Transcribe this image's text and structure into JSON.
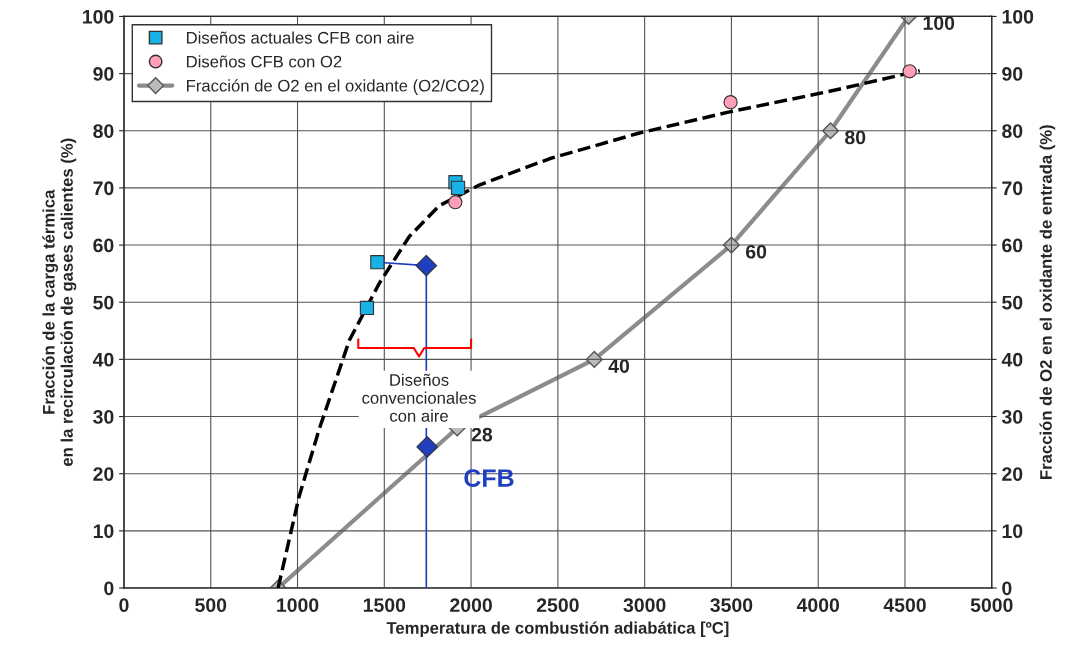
{
  "chart_data": {
    "type": "scatter",
    "xlabel": "Temperatura de combustión adiabática [ºC]",
    "ylabel": "Fracción de la carga térmica\nen la recirculación de gases calientes (%)",
    "y2label": "Fracción de O2 en el oxidante de entrada (%)",
    "xlim": [
      0,
      5000
    ],
    "xticks": [
      0,
      500,
      1000,
      1500,
      2000,
      2500,
      3000,
      3500,
      4000,
      4500,
      5000
    ],
    "ylim": [
      0,
      100
    ],
    "yticks": [
      0,
      10,
      20,
      30,
      40,
      50,
      60,
      70,
      80,
      90,
      100
    ],
    "y2lim": [
      0,
      100
    ],
    "y2ticks": [
      0,
      10,
      20,
      30,
      40,
      50,
      60,
      70,
      80,
      90,
      100
    ],
    "grid": true,
    "legend": "top left",
    "series": [
      {
        "name": "Diseños actuales CFB con aire",
        "marker": "square",
        "color": "#19b2e6",
        "x": [
          1400,
          1460,
          1910,
          1925
        ],
        "values": [
          49,
          57,
          71,
          70
        ]
      },
      {
        "name": "Diseños CFB con O2",
        "marker": "circle",
        "color": "#ff9fb8",
        "x": [
          1909,
          3495,
          4527
        ],
        "values": [
          67.5,
          85,
          90.4
        ]
      },
      {
        "name": "Fracción de O2 en el oxidante (O2/CO2)",
        "type": "line",
        "marker": "diamond",
        "color": "#8c8c8c",
        "axis": "y2",
        "x": [
          888,
          1920,
          2710,
          3500,
          4071,
          4521
        ],
        "values": [
          0,
          28,
          40,
          60,
          80,
          100
        ],
        "value_labels": [
          null,
          "28",
          "40",
          "60",
          "80",
          "100"
        ]
      },
      {
        "type": "line",
        "marker": "none",
        "line_style": "dashed",
        "color": "#000000",
        "x": [
          888,
          1009,
          1125,
          1298,
          1471,
          1644,
          1817,
          2047,
          2451,
          2970,
          3489,
          4066,
          4585
        ],
        "values": [
          0,
          16,
          27.8,
          43.3,
          53.3,
          61.5,
          66.9,
          70.5,
          75.1,
          79.6,
          83.3,
          86.9,
          90.5
        ]
      },
      {
        "type": "line",
        "marker": "none",
        "line_style": "solid",
        "color": "#1f3fbf",
        "x": [
          1460,
          1742,
          1742
        ],
        "values": [
          57,
          56.4,
          0
        ]
      },
      {
        "marker": "diamond",
        "color": "#1f3fbf",
        "x": [
          1742,
          1747
        ],
        "values": [
          56.4,
          24.7
        ]
      }
    ],
    "annotations": [
      "Diseños\nconvencionales\ncon aire",
      {
        "text": "CFB",
        "x": 1747,
        "y": 24.7
      }
    ]
  }
}
